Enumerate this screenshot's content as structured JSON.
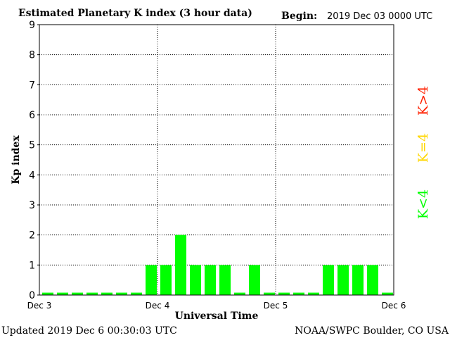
{
  "chart_data": {
    "type": "bar",
    "title": "Estimated Planetary K index (3 hour data)",
    "begin_label": "Begin:",
    "begin_value": "2019 Dec 03 0000 UTC",
    "xlabel": "Universal Time",
    "ylabel": "Kp index",
    "ylim": [
      0,
      9
    ],
    "yticks": [
      "0",
      "1",
      "2",
      "3",
      "4",
      "5",
      "6",
      "7",
      "8",
      "9"
    ],
    "xticks": [
      "Dec 3",
      "Dec 4",
      "Dec 5",
      "Dec 6"
    ],
    "grid": true,
    "values": [
      0,
      0,
      0,
      0,
      0,
      0,
      0,
      1,
      1,
      2,
      1,
      1,
      1,
      0,
      1,
      0,
      0,
      0,
      0,
      1,
      1,
      1,
      1,
      0
    ],
    "color_normal": "#00ff00",
    "legend": [
      {
        "label": "K<4",
        "color": "#00ff00"
      },
      {
        "label": "K=4",
        "color": "#ffd700"
      },
      {
        "label": "K>4",
        "color": "#ff2000"
      }
    ]
  },
  "footer": {
    "updated": "Updated 2019 Dec  6 00:30:03 UTC",
    "credit": "NOAA/SWPC Boulder, CO USA"
  }
}
